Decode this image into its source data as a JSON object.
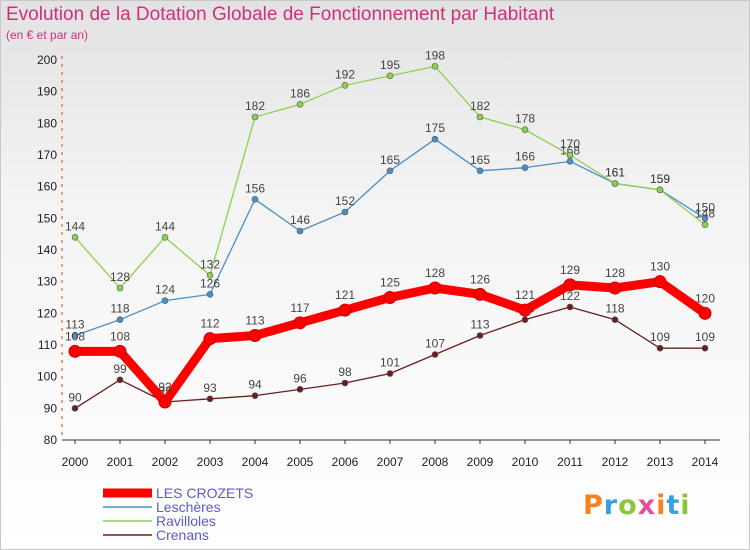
{
  "header": {
    "title": "Evolution de la Dotation Globale de Fonctionnement par Habitant",
    "subtitle": "(en € et par an)"
  },
  "logo": {
    "text": "Proxiti",
    "colors": [
      "#f58220",
      "#3aa0d8",
      "#8cc63f",
      "#e84e9c",
      "#f58220",
      "#3aa0d8",
      "#8cc63f"
    ]
  },
  "chart_data": {
    "type": "line",
    "title": "Evolution de la Dotation Globale de Fonctionnement par Habitant",
    "subtitle": "(en € et par an)",
    "x": [
      "2000",
      "2001",
      "2002",
      "2003",
      "2004",
      "2005",
      "2006",
      "2007",
      "2008",
      "2009",
      "2010",
      "2011",
      "2012",
      "2013",
      "2014"
    ],
    "ylim": [
      80,
      200
    ],
    "yticks": [
      80,
      90,
      100,
      110,
      120,
      130,
      140,
      150,
      160,
      170,
      180,
      190,
      200
    ],
    "grid": false,
    "legend": "bottom-left",
    "series": [
      {
        "name": "LES CROZETS",
        "color": "#ff0000",
        "values": [
          108,
          108,
          92,
          112,
          113,
          117,
          121,
          125,
          128,
          126,
          121,
          129,
          128,
          130,
          120
        ]
      },
      {
        "name": "Leschères",
        "color": "#4a90c8",
        "values": [
          113,
          118,
          124,
          126,
          156,
          146,
          152,
          165,
          175,
          165,
          166,
          168,
          161,
          159,
          150
        ]
      },
      {
        "name": "Ravilloles",
        "color": "#8cd050",
        "values": [
          144,
          128,
          144,
          132,
          182,
          186,
          192,
          195,
          198,
          182,
          178,
          170,
          161,
          159,
          148
        ]
      },
      {
        "name": "Crenans",
        "color": "#6b1e1e",
        "values": [
          90,
          99,
          92,
          93,
          94,
          96,
          98,
          101,
          107,
          113,
          118,
          122,
          118,
          109,
          109
        ]
      }
    ]
  }
}
